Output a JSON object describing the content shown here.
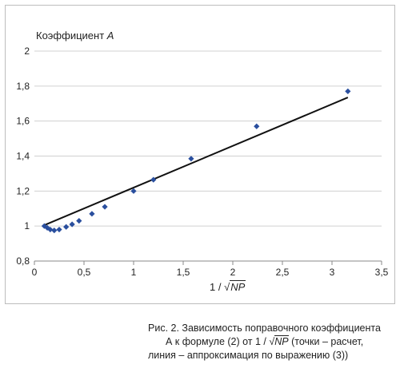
{
  "chart_data": {
    "type": "scatter",
    "ylabel_prefix": "Коэффициент ",
    "ylabel_var": "A",
    "xlabel_prefix": "1 / ",
    "xlabel_root": "√",
    "xlabel_radicand": "NP",
    "xlim": [
      0,
      3.5
    ],
    "ylim": [
      0.8,
      2
    ],
    "x_ticks": [
      "0",
      "0,5",
      "1",
      "1,5",
      "2",
      "2,5",
      "3",
      "3,5"
    ],
    "x_tick_values": [
      0,
      0.5,
      1,
      1.5,
      2,
      2.5,
      3,
      3.5
    ],
    "y_ticks": [
      "0,8",
      "1",
      "1,2",
      "1,4",
      "1,6",
      "1,8",
      "2"
    ],
    "y_tick_values": [
      0.8,
      1,
      1.2,
      1.4,
      1.6,
      1.8,
      2
    ],
    "grid": {
      "x": false,
      "y": true
    },
    "legend": "none",
    "series": [
      {
        "kind": "points",
        "color": "#2a4f9e",
        "points": [
          {
            "x": 0.1,
            "y": 1.0
          },
          {
            "x": 0.13,
            "y": 0.99
          },
          {
            "x": 0.16,
            "y": 0.98
          },
          {
            "x": 0.2,
            "y": 0.975
          },
          {
            "x": 0.25,
            "y": 0.98
          },
          {
            "x": 0.32,
            "y": 0.995
          },
          {
            "x": 0.38,
            "y": 1.01
          },
          {
            "x": 0.45,
            "y": 1.03
          },
          {
            "x": 0.58,
            "y": 1.07
          },
          {
            "x": 0.71,
            "y": 1.11
          },
          {
            "x": 1.0,
            "y": 1.2
          },
          {
            "x": 1.2,
            "y": 1.265
          },
          {
            "x": 1.58,
            "y": 1.385
          },
          {
            "x": 2.24,
            "y": 1.57
          },
          {
            "x": 3.16,
            "y": 1.77
          }
        ]
      },
      {
        "kind": "line",
        "color": "#111111",
        "points": [
          {
            "x": 0.1,
            "y": 1.005
          },
          {
            "x": 3.16,
            "y": 1.735
          }
        ]
      }
    ]
  },
  "caption": {
    "line1": "Рис. 2. Зависимость поправочного коэффициента",
    "line2_prefix": "А к формуле (2) от 1 / √",
    "line2_radicand": "NP",
    "line2_suffix": " (точки – расчет,",
    "line3": "линия – аппроксимация по выражению (3))"
  }
}
